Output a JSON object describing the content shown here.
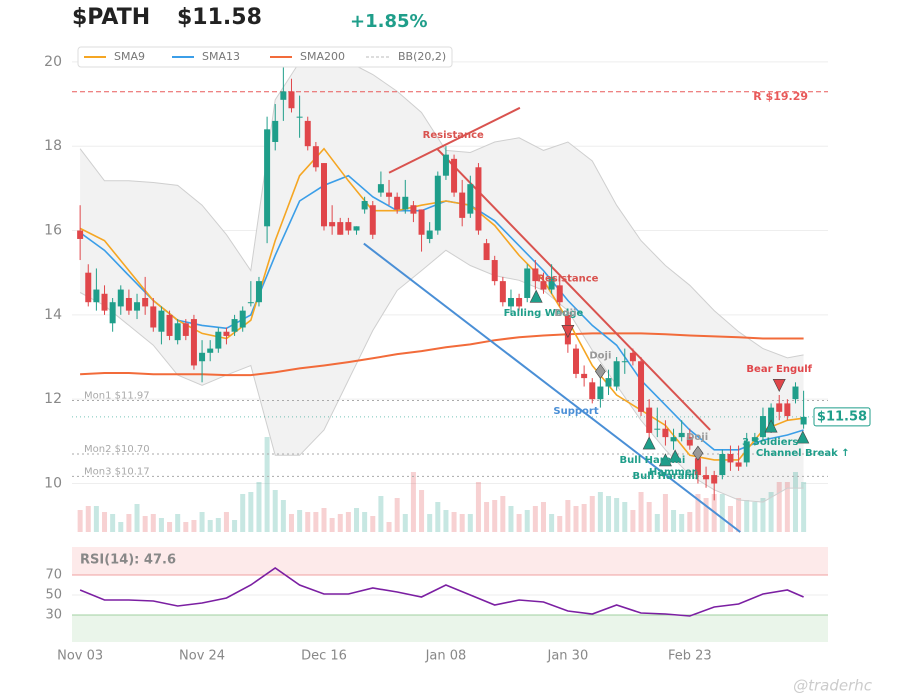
{
  "chart_data": {
    "type": "candlestick",
    "ticker": "$PATH",
    "price": "$11.58",
    "change": "+1.85%",
    "watermark": "@traderhc",
    "up_color": "#1f9e8a",
    "down_color": "#e0464a",
    "xlim": [
      -1,
      92
    ],
    "xticks": [
      {
        "value": 0,
        "label": "Nov 03"
      },
      {
        "value": 15,
        "label": "Nov 24"
      },
      {
        "value": 30,
        "label": "Dec 16"
      },
      {
        "value": 45,
        "label": "Jan 08"
      },
      {
        "value": 60,
        "label": "Jan 30"
      },
      {
        "value": 75,
        "label": "Feb 23"
      }
    ],
    "ylim": [
      8.85,
      20.4
    ],
    "yticks": [
      10,
      12,
      14,
      16,
      18,
      20
    ],
    "grid": true,
    "candles": [
      [
        16.0,
        16.6,
        15.3,
        15.8
      ],
      [
        15.0,
        15.2,
        14.2,
        14.3
      ],
      [
        14.3,
        15.1,
        14.1,
        14.6
      ],
      [
        14.5,
        14.7,
        14.0,
        14.1
      ],
      [
        13.8,
        14.4,
        13.6,
        14.3
      ],
      [
        14.2,
        14.7,
        14.0,
        14.6
      ],
      [
        14.4,
        14.6,
        14.0,
        14.1
      ],
      [
        14.1,
        14.5,
        13.9,
        14.3
      ],
      [
        14.4,
        14.9,
        14.0,
        14.2
      ],
      [
        14.2,
        14.4,
        13.6,
        13.7
      ],
      [
        13.6,
        14.2,
        13.3,
        14.1
      ],
      [
        14.0,
        14.1,
        13.4,
        13.5
      ],
      [
        13.4,
        13.9,
        13.3,
        13.8
      ],
      [
        13.8,
        13.9,
        13.4,
        13.5
      ],
      [
        13.9,
        14.0,
        12.7,
        12.8
      ],
      [
        12.9,
        13.4,
        12.4,
        13.1
      ],
      [
        13.1,
        13.4,
        12.9,
        13.2
      ],
      [
        13.2,
        13.7,
        13.1,
        13.6
      ],
      [
        13.6,
        13.7,
        13.3,
        13.5
      ],
      [
        13.6,
        14.0,
        13.5,
        13.9
      ],
      [
        13.7,
        14.2,
        13.6,
        14.1
      ],
      [
        14.3,
        14.8,
        14.2,
        14.3
      ],
      [
        14.3,
        14.9,
        14.2,
        14.8
      ],
      [
        16.1,
        18.7,
        15.7,
        18.4
      ],
      [
        18.1,
        19.0,
        17.9,
        18.6
      ],
      [
        19.1,
        19.9,
        18.6,
        19.3
      ],
      [
        19.3,
        19.6,
        18.8,
        18.9
      ],
      [
        18.7,
        19.2,
        18.2,
        18.7
      ],
      [
        18.6,
        18.7,
        17.9,
        18.0
      ],
      [
        18.0,
        18.1,
        17.4,
        17.5
      ],
      [
        17.6,
        17.6,
        16.0,
        16.1
      ],
      [
        16.2,
        16.6,
        15.9,
        16.1
      ],
      [
        16.2,
        16.3,
        15.9,
        15.9
      ],
      [
        16.2,
        16.3,
        15.9,
        16.0
      ],
      [
        16.0,
        16.1,
        15.9,
        16.1
      ],
      [
        16.5,
        16.8,
        16.4,
        16.7
      ],
      [
        16.6,
        16.7,
        15.8,
        15.9
      ],
      [
        16.9,
        17.4,
        16.8,
        17.1
      ],
      [
        16.9,
        17.2,
        16.6,
        16.8
      ],
      [
        16.8,
        16.9,
        16.4,
        16.5
      ],
      [
        16.5,
        17.2,
        16.4,
        16.8
      ],
      [
        16.6,
        16.7,
        16.2,
        16.4
      ],
      [
        16.5,
        16.5,
        15.5,
        15.9
      ],
      [
        15.8,
        16.2,
        15.7,
        16.0
      ],
      [
        16.0,
        17.4,
        15.9,
        17.3
      ],
      [
        17.3,
        18.0,
        17.2,
        17.8
      ],
      [
        17.7,
        17.8,
        16.8,
        16.9
      ],
      [
        16.9,
        17.2,
        16.1,
        16.3
      ],
      [
        16.4,
        17.3,
        16.3,
        17.1
      ],
      [
        17.5,
        17.6,
        15.9,
        16.0
      ],
      [
        15.7,
        15.8,
        15.3,
        15.3
      ],
      [
        15.3,
        15.4,
        14.7,
        14.8
      ],
      [
        14.8,
        14.9,
        14.2,
        14.3
      ],
      [
        14.2,
        14.6,
        14.0,
        14.4
      ],
      [
        14.4,
        14.5,
        14.1,
        14.2
      ],
      [
        14.4,
        15.2,
        14.3,
        15.1
      ],
      [
        15.1,
        15.3,
        14.6,
        14.8
      ],
      [
        14.8,
        15.0,
        14.5,
        14.6
      ],
      [
        14.6,
        15.2,
        14.5,
        14.9
      ],
      [
        14.7,
        14.8,
        14.2,
        14.3
      ],
      [
        14.0,
        14.1,
        13.1,
        13.3
      ],
      [
        13.2,
        13.3,
        12.5,
        12.6
      ],
      [
        12.6,
        12.8,
        12.3,
        12.5
      ],
      [
        12.4,
        12.5,
        11.9,
        12.0
      ],
      [
        12.0,
        12.5,
        11.8,
        12.3
      ],
      [
        12.3,
        12.7,
        12.1,
        12.5
      ],
      [
        12.3,
        13.0,
        12.2,
        12.9
      ],
      [
        12.9,
        13.2,
        12.6,
        12.9
      ],
      [
        13.1,
        13.2,
        12.8,
        12.9
      ],
      [
        12.9,
        13.0,
        11.6,
        11.7
      ],
      [
        11.8,
        12.0,
        11.1,
        11.2
      ],
      [
        11.3,
        11.8,
        11.1,
        11.3
      ],
      [
        11.3,
        11.5,
        10.9,
        11.1
      ],
      [
        11.0,
        11.3,
        10.8,
        11.1
      ],
      [
        11.1,
        11.5,
        11.0,
        11.2
      ],
      [
        11.1,
        11.3,
        10.8,
        10.9
      ],
      [
        10.6,
        10.8,
        10.0,
        10.2
      ],
      [
        10.2,
        10.4,
        9.9,
        10.1
      ],
      [
        10.2,
        10.3,
        9.6,
        10.0
      ],
      [
        10.2,
        10.8,
        10.1,
        10.7
      ],
      [
        10.7,
        10.9,
        10.3,
        10.5
      ],
      [
        10.5,
        10.9,
        10.3,
        10.4
      ],
      [
        10.5,
        11.2,
        10.4,
        11.0
      ],
      [
        11.0,
        11.2,
        10.9,
        11.1
      ],
      [
        11.1,
        11.8,
        11.0,
        11.6
      ],
      [
        11.3,
        11.9,
        11.2,
        11.8
      ],
      [
        11.9,
        12.1,
        11.5,
        11.7
      ],
      [
        11.9,
        12.0,
        11.5,
        11.6
      ],
      [
        12.0,
        12.4,
        11.9,
        12.3
      ],
      [
        11.4,
        12.2,
        11.3,
        11.58
      ]
    ],
    "volume": {
      "vlim": [
        0,
        100
      ],
      "values": [
        22,
        26,
        26,
        20,
        18,
        10,
        18,
        28,
        16,
        18,
        14,
        10,
        18,
        10,
        12,
        20,
        12,
        14,
        20,
        12,
        38,
        40,
        50,
        95,
        42,
        32,
        18,
        22,
        20,
        20,
        24,
        14,
        18,
        20,
        24,
        20,
        16,
        36,
        10,
        34,
        18,
        60,
        42,
        18,
        30,
        22,
        20,
        18,
        18,
        50,
        30,
        32,
        36,
        26,
        18,
        22,
        26,
        30,
        18,
        16,
        32,
        26,
        28,
        36,
        40,
        36,
        34,
        30,
        22,
        40,
        30,
        18,
        38,
        22,
        18,
        20,
        38,
        34,
        38,
        38,
        26,
        34,
        32,
        30,
        34,
        40,
        50,
        50,
        60,
        50
      ]
    },
    "lines": {
      "x": [
        0,
        3,
        6,
        9,
        12,
        15,
        18,
        21,
        24,
        27,
        30,
        33,
        36,
        39,
        42,
        45,
        48,
        51,
        54,
        57,
        60,
        63,
        66,
        69,
        72,
        75,
        78,
        81,
        84,
        87,
        89
      ],
      "series": [
        {
          "name": "SMA9",
          "color": "#f5a623",
          "values": [
            16.05,
            15.76,
            15.05,
            14.34,
            13.87,
            13.56,
            13.44,
            13.87,
            15.76,
            17.3,
            17.94,
            17.18,
            16.47,
            16.47,
            16.6,
            16.7,
            16.6,
            16.12,
            15.41,
            14.82,
            13.87,
            12.8,
            12.1,
            11.74,
            11.38,
            10.67,
            10.56,
            10.56,
            11.27,
            11.5,
            11.55
          ]
        },
        {
          "name": "SMA13",
          "color": "#3b9ee8",
          "values": [
            15.95,
            15.53,
            14.93,
            14.34,
            13.87,
            13.75,
            13.68,
            14.0,
            15.41,
            16.7,
            17.07,
            17.3,
            16.8,
            16.47,
            16.47,
            16.7,
            16.6,
            16.23,
            15.64,
            15.05,
            14.34,
            13.75,
            13.28,
            12.45,
            11.86,
            11.27,
            10.8,
            10.8,
            11.03,
            11.15,
            11.27
          ]
        },
        {
          "name": "SMA200",
          "color": "#f26b3a",
          "values": [
            12.59,
            12.62,
            12.62,
            12.59,
            12.59,
            12.59,
            12.57,
            12.57,
            12.64,
            12.73,
            12.8,
            12.88,
            12.97,
            13.07,
            13.14,
            13.23,
            13.3,
            13.4,
            13.47,
            13.51,
            13.54,
            13.56,
            13.56,
            13.56,
            13.54,
            13.51,
            13.49,
            13.47,
            13.44,
            13.44,
            13.44
          ]
        }
      ]
    },
    "bb": {
      "name": "BB(20,2)",
      "color": "#cfcfcf",
      "upper": [
        17.94,
        17.18,
        17.18,
        17.14,
        17.07,
        16.6,
        15.9,
        15.05,
        19.1,
        20.0,
        20.1,
        20.0,
        19.7,
        19.3,
        18.8,
        17.9,
        17.85,
        18.1,
        18.2,
        17.9,
        18.1,
        17.65,
        16.6,
        15.76,
        15.17,
        14.7,
        14.1,
        13.6,
        13.2,
        12.98,
        13.05
      ],
      "lower": [
        14.53,
        14.22,
        13.75,
        13.28,
        12.57,
        12.33,
        12.57,
        12.8,
        10.67,
        10.67,
        11.27,
        12.45,
        13.63,
        14.58,
        15.05,
        15.53,
        15.17,
        14.93,
        14.82,
        14.58,
        14.1,
        13.16,
        12.33,
        11.5,
        10.8,
        10.2,
        9.85,
        9.61,
        9.56,
        9.89,
        9.89
      ]
    },
    "rsi": {
      "label": "RSI(14): 47.6",
      "color": "#7b1fa2",
      "ylim": [
        0,
        100
      ],
      "yticks": [
        30,
        50,
        70
      ],
      "values": [
        55,
        45,
        45,
        44,
        39,
        42,
        47,
        60,
        77,
        60,
        51,
        51,
        57,
        53,
        48,
        60,
        50,
        40,
        45,
        43,
        34,
        31,
        40,
        32,
        31,
        29,
        38,
        41,
        51,
        55,
        48
      ]
    },
    "levels": [
      {
        "label": "R $19.29",
        "value": 19.29,
        "color": "#e85a5a",
        "style": "dashed"
      },
      {
        "label": "Mon1 $11.97",
        "value": 11.97,
        "color": "#aaaaaa",
        "style": "dotted"
      },
      {
        "label": "Mon2 $10.70",
        "value": 10.7,
        "color": "#aaaaaa",
        "style": "dotted"
      },
      {
        "label": "Mon3 $10.17",
        "value": 10.17,
        "color": "#aaaaaa",
        "style": "dotted"
      }
    ],
    "price_tag": {
      "label": "$11.58",
      "value": 11.58,
      "color": "#1f9e8a"
    },
    "trendlines": [
      {
        "color": "#d9534f",
        "x": [
          38,
          54.1
        ],
        "y": [
          17.37,
          18.91
        ]
      },
      {
        "color": "#d9534f",
        "x": [
          43.9,
          77.5
        ],
        "y": [
          17.94,
          11.27
        ]
      },
      {
        "color": "#4a8fd6",
        "x": [
          34.9,
          81.2
        ],
        "y": [
          15.69,
          8.85
        ]
      }
    ],
    "annotations": [
      {
        "text": "Resistance",
        "x": 45.9,
        "y": 18.27,
        "color": "#d9534f"
      },
      {
        "text": "Resistance",
        "x": 60.0,
        "y": 14.86,
        "color": "#d9534f"
      },
      {
        "text": "Falling Wedge",
        "x": 57.0,
        "y": 14.04,
        "color": "#1f9e8a"
      },
      {
        "text": "Doji",
        "x": 59.7,
        "y": 14.04,
        "color": "#999999"
      },
      {
        "text": "Support",
        "x": 61.0,
        "y": 11.72,
        "color": "#4a8fd6"
      },
      {
        "text": "Doji",
        "x": 64.0,
        "y": 13.04,
        "color": "#999999"
      },
      {
        "text": "Doji",
        "x": 75.9,
        "y": 11.1,
        "color": "#999999"
      },
      {
        "text": "Bear Engulf",
        "x": 86.0,
        "y": 12.71,
        "color": "#e0464a"
      },
      {
        "text": "3 Soldiers",
        "x": 84.9,
        "y": 10.98,
        "color": "#1f9e8a"
      },
      {
        "text": "Channel Break ↑",
        "x": 88.9,
        "y": 10.72,
        "color": "#1f9e8a"
      },
      {
        "text": "Bull Harami",
        "x": 70.4,
        "y": 10.56,
        "color": "#1f9e8a"
      },
      {
        "text": "Hammer",
        "x": 72.9,
        "y": 10.27,
        "color": "#1f9e8a"
      },
      {
        "text": "Bull Harami",
        "x": 72.0,
        "y": 10.18,
        "color": "#1f9e8a"
      }
    ],
    "markers": [
      {
        "shape": "up",
        "x": 56.1,
        "y": 14.44,
        "color": "#1f9e8a"
      },
      {
        "shape": "up",
        "x": 70.0,
        "y": 10.96,
        "color": "#1f9e8a"
      },
      {
        "shape": "up",
        "x": 72.0,
        "y": 10.56,
        "color": "#1f9e8a"
      },
      {
        "shape": "up",
        "x": 73.2,
        "y": 10.65,
        "color": "#1f9e8a"
      },
      {
        "shape": "up",
        "x": 85.0,
        "y": 11.36,
        "color": "#1f9e8a"
      },
      {
        "shape": "up",
        "x": 88.9,
        "y": 11.1,
        "color": "#1f9e8a"
      },
      {
        "shape": "down",
        "x": 60.0,
        "y": 13.61,
        "color": "#e0464a"
      },
      {
        "shape": "down",
        "x": 86.0,
        "y": 12.33,
        "color": "#e0464a"
      },
      {
        "shape": "diamond",
        "x": 64.0,
        "y": 12.66,
        "color": "#999999"
      },
      {
        "shape": "diamond",
        "x": 76.0,
        "y": 10.72,
        "color": "#999999"
      }
    ]
  }
}
